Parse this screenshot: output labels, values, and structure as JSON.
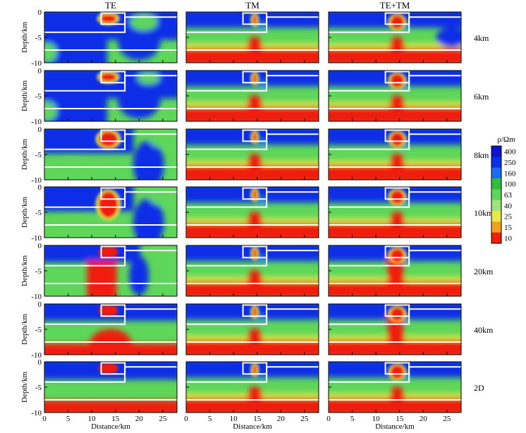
{
  "chart_data": {
    "type": "heatmap",
    "figure_description_columns": [
      "TE",
      "TM",
      "TE+TM"
    ],
    "row_labels": [
      "4km",
      "6km",
      "8km",
      "10km",
      "20km",
      "40km",
      "2D"
    ],
    "xlabel": "Distance/km",
    "ylabel": "Depth/km",
    "x_ticks": [
      "0",
      "5",
      "10",
      "15",
      "20",
      "25"
    ],
    "y_ticks": [
      "0",
      "-5",
      "-10"
    ],
    "xlim": [
      0,
      28
    ],
    "ylim": [
      -10,
      0
    ],
    "colorbar": {
      "title": "ρ/Ωm",
      "ticks": [
        "400",
        "250",
        "160",
        "100",
        "63",
        "40",
        "25",
        "15",
        "10"
      ],
      "scale": "log"
    },
    "model_outline": {
      "description": "white lines marking the true model boundaries",
      "conductor_box_x": [
        12,
        17
      ],
      "conductor_box_depth": [
        0,
        -2.5
      ],
      "upper_interface_depth": -4,
      "lower_interface_depth": -7.5
    }
  }
}
